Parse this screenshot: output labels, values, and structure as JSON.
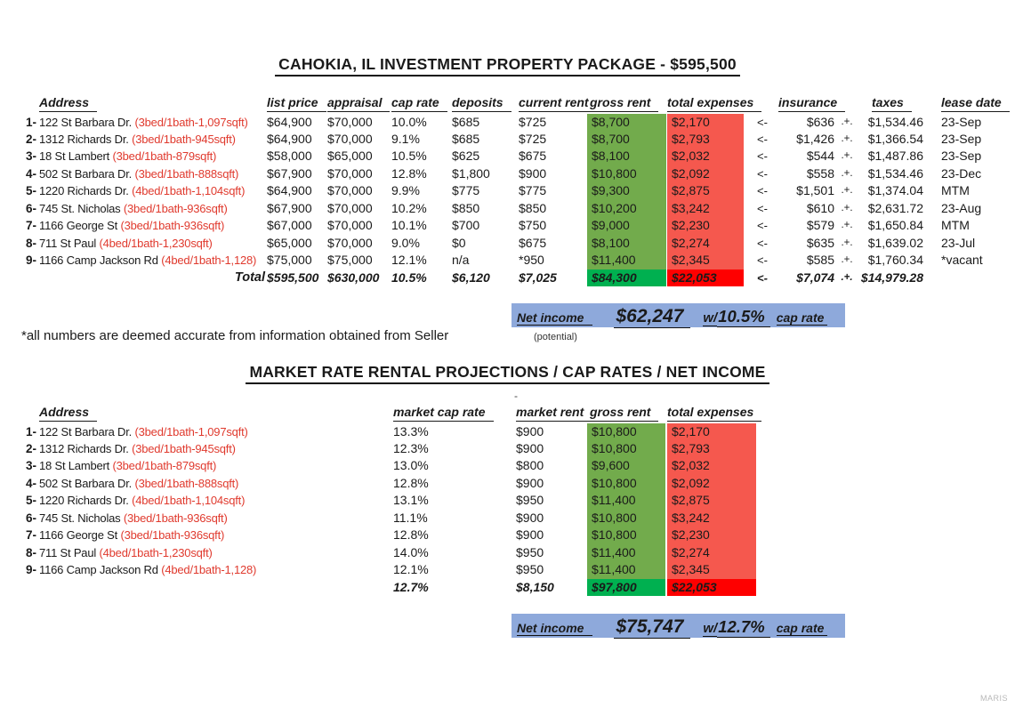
{
  "titles": {
    "package": "CAHOKIA, IL INVESTMENT PROPERTY PACKAGE - $595,500",
    "market": "MARKET RATE RENTAL PROJECTIONS / CAP RATES / NET INCOME"
  },
  "note": "*all numbers are deemed accurate from information obtained from Seller",
  "potential": "(potential)",
  "stray_dash": "-",
  "watermark": "MARIS",
  "colors": {
    "green_cell": "#72ab4c",
    "green_total": "#00b050",
    "red_cell": "#f5584e",
    "red_total": "#fe0000",
    "banner_blue": "#8ea9db",
    "address_red": "#e03a2e"
  },
  "table1": {
    "headers": {
      "address": "Address",
      "list_price": "list price",
      "appraisal": "appraisal",
      "cap_rate": "cap rate",
      "deposits": "deposits",
      "current_rent": "current rent",
      "gross_rent": "gross rent",
      "total_expenses": "total expenses",
      "insurance": "insurance",
      "taxes": "taxes",
      "lease_date": "lease date"
    },
    "rows": [
      {
        "num": "1-",
        "address": "122 St Barbara  Dr.",
        "spec": "(3bed/1bath-1,097sqft)",
        "list_price": "$64,900",
        "appraisal": "$70,000",
        "cap_rate": "10.0%",
        "deposits": "$685",
        "current_rent": "$725",
        "gross_rent": "$8,700",
        "total_expenses": "$2,170",
        "arrow": "<-",
        "insurance": "$636",
        "plus": ".+.",
        "taxes": "$1,534.46",
        "lease_date": "23-Sep"
      },
      {
        "num": "2-",
        "address": "1312 Richards Dr.",
        "spec": "(3bed/1bath-945sqft)",
        "list_price": "$64,900",
        "appraisal": "$70,000",
        "cap_rate": "9.1%",
        "deposits": "$685",
        "current_rent": "$725",
        "gross_rent": "$8,700",
        "total_expenses": "$2,793",
        "arrow": "<-",
        "insurance": "$1,426",
        "plus": ".+.",
        "taxes": "$1,366.54",
        "lease_date": "23-Sep"
      },
      {
        "num": "3-",
        "address": "18 St Lambert",
        "spec": "(3bed/1bath-879sqft)",
        "list_price": "$58,000",
        "appraisal": "$65,000",
        "cap_rate": "10.5%",
        "deposits": "$625",
        "current_rent": "$675",
        "gross_rent": "$8,100",
        "total_expenses": "$2,032",
        "arrow": "<-",
        "insurance": "$544",
        "plus": ".+.",
        "taxes": "$1,487.86",
        "lease_date": "23-Sep"
      },
      {
        "num": "4-",
        "address": "502 St Barbara Dr.",
        "spec": "(3bed/1bath-888sqft)",
        "list_price": "$67,900",
        "appraisal": "$70,000",
        "cap_rate": "12.8%",
        "deposits": "$1,800",
        "current_rent": "$900",
        "gross_rent": "$10,800",
        "total_expenses": "$2,092",
        "arrow": "<-",
        "insurance": "$558",
        "plus": ".+.",
        "taxes": "$1,534.46",
        "lease_date": "23-Dec"
      },
      {
        "num": "5-",
        "address": "1220 Richards Dr.",
        "spec": "(4bed/1bath-1,104sqft)",
        "list_price": "$64,900",
        "appraisal": "$70,000",
        "cap_rate": "9.9%",
        "deposits": "$775",
        "current_rent": "$775",
        "gross_rent": "$9,300",
        "total_expenses": "$2,875",
        "arrow": "<-",
        "insurance": "$1,501",
        "plus": ".+.",
        "taxes": "$1,374.04",
        "lease_date": "MTM"
      },
      {
        "num": "6-",
        "address": "745 St. Nicholas",
        "spec": "(3bed/1bath-936sqft)",
        "list_price": "$67,900",
        "appraisal": "$70,000",
        "cap_rate": "10.2%",
        "deposits": "$850",
        "current_rent": "$850",
        "gross_rent": "$10,200",
        "total_expenses": "$3,242",
        "arrow": "<-",
        "insurance": "$610",
        "plus": ".+.",
        "taxes": "$2,631.72",
        "lease_date": "23-Aug"
      },
      {
        "num": "7-",
        "address": "1166 George St",
        "spec": "(3bed/1bath-936sqft)",
        "list_price": "$67,000",
        "appraisal": "$70,000",
        "cap_rate": "10.1%",
        "deposits": "$700",
        "current_rent": "$750",
        "gross_rent": "$9,000",
        "total_expenses": "$2,230",
        "arrow": "<-",
        "insurance": "$579",
        "plus": ".+.",
        "taxes": "$1,650.84",
        "lease_date": "MTM"
      },
      {
        "num": "8-",
        "address": "711 St Paul",
        "spec": "(4bed/1bath-1,230sqft)",
        "list_price": "$65,000",
        "appraisal": "$70,000",
        "cap_rate": "9.0%",
        "deposits": "$0",
        "current_rent": "$675",
        "gross_rent": "$8,100",
        "total_expenses": "$2,274",
        "arrow": "<-",
        "insurance": "$635",
        "plus": ".+.",
        "taxes": "$1,639.02",
        "lease_date": "23-Jul"
      },
      {
        "num": "9-",
        "address": "1166 Camp Jackson Rd",
        "spec": "(4bed/1bath-1,128)",
        "list_price": "$75,000",
        "appraisal": "$75,000",
        "cap_rate": "12.1%",
        "deposits": "n/a",
        "current_rent": "*950",
        "gross_rent": "$11,400",
        "total_expenses": "$2,345",
        "arrow": "<-",
        "insurance": "$585",
        "plus": ".+.",
        "taxes": "$1,760.34",
        "lease_date": "*vacant"
      }
    ],
    "totals": {
      "num": "",
      "address": "Total",
      "spec": "",
      "list_price": "$595,500",
      "appraisal": "$630,000",
      "cap_rate": "10.5%",
      "deposits": "$6,120",
      "current_rent": "$7,025",
      "gross_rent": "$84,300",
      "total_expenses": "$22,053",
      "arrow": "<-",
      "insurance": "$7,074",
      "plus": ".+.",
      "taxes": "$14,979.28",
      "lease_date": ""
    }
  },
  "banner1": {
    "label": "Net income",
    "amount": "$62,247",
    "w": "w/",
    "rate": "10.5%",
    "cap": "cap rate"
  },
  "table2": {
    "headers": {
      "address": "Address",
      "market_cap_rate": "market cap rate",
      "market_rent": "market rent",
      "gross_rent": "gross rent",
      "total_expenses": "total expenses"
    },
    "rows": [
      {
        "num": "1-",
        "address": "122 St Barbara  Dr.",
        "spec": "(3bed/1bath-1,097sqft)",
        "market_cap_rate": "13.3%",
        "market_rent": "$900",
        "gross_rent": "$10,800",
        "total_expenses": "$2,170"
      },
      {
        "num": "2-",
        "address": "1312 Richards Dr.",
        "spec": "(3bed/1bath-945sqft)",
        "market_cap_rate": "12.3%",
        "market_rent": "$900",
        "gross_rent": "$10,800",
        "total_expenses": "$2,793"
      },
      {
        "num": "3-",
        "address": "18 St Lambert",
        "spec": "(3bed/1bath-879sqft)",
        "market_cap_rate": "13.0%",
        "market_rent": "$800",
        "gross_rent": "$9,600",
        "total_expenses": "$2,032"
      },
      {
        "num": "4-",
        "address": "502 St Barbara Dr.",
        "spec": "(3bed/1bath-888sqft)",
        "market_cap_rate": "12.8%",
        "market_rent": "$900",
        "gross_rent": "$10,800",
        "total_expenses": "$2,092"
      },
      {
        "num": "5-",
        "address": "1220 Richards Dr.",
        "spec": "(4bed/1bath-1,104sqft)",
        "market_cap_rate": "13.1%",
        "market_rent": "$950",
        "gross_rent": "$11,400",
        "total_expenses": "$2,875"
      },
      {
        "num": "6-",
        "address": "745 St. Nicholas",
        "spec": "(3bed/1bath-936sqft)",
        "market_cap_rate": "11.1%",
        "market_rent": "$900",
        "gross_rent": "$10,800",
        "total_expenses": "$3,242"
      },
      {
        "num": "7-",
        "address": "1166 George St",
        "spec": "(3bed/1bath-936sqft)",
        "market_cap_rate": "12.8%",
        "market_rent": "$900",
        "gross_rent": "$10,800",
        "total_expenses": "$2,230"
      },
      {
        "num": "8-",
        "address": "711 St Paul",
        "spec": "(4bed/1bath-1,230sqft)",
        "market_cap_rate": "14.0%",
        "market_rent": "$950",
        "gross_rent": "$11,400",
        "total_expenses": "$2,274"
      },
      {
        "num": "9-",
        "address": "1166 Camp Jackson Rd",
        "spec": "(4bed/1bath-1,128)",
        "market_cap_rate": "12.1%",
        "market_rent": "$950",
        "gross_rent": "$11,400",
        "total_expenses": "$2,345"
      }
    ],
    "totals": {
      "num": "",
      "address": "",
      "spec": "",
      "market_cap_rate": "12.7%",
      "market_rent": "$8,150",
      "gross_rent": "$97,800",
      "total_expenses": "$22,053"
    }
  },
  "banner2": {
    "label": "Net income",
    "amount": "$75,747",
    "w": "w/",
    "rate": "12.7%",
    "cap": "cap rate"
  }
}
